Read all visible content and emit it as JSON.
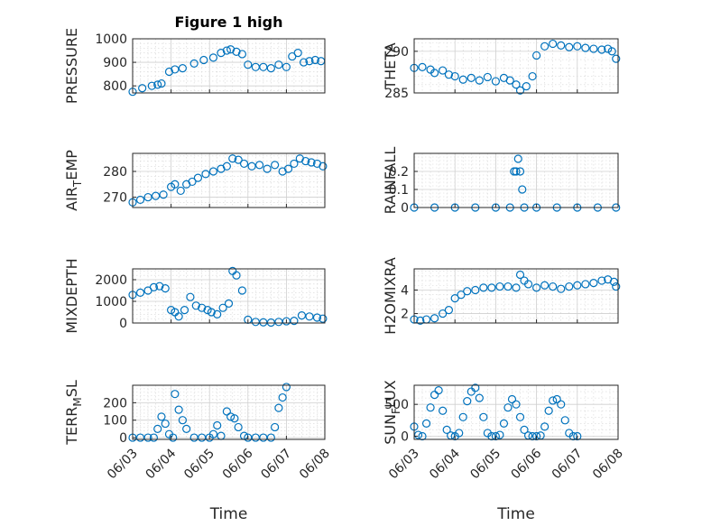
{
  "figure": {
    "title": "Figure 1 high",
    "x_label": "Time",
    "x_tick_labels": [
      "06/03",
      "06/04",
      "06/05",
      "06/06",
      "06/07",
      "06/08"
    ],
    "marker_color": "#0072BD",
    "marker": "circle-open"
  },
  "chart_data": [
    {
      "type": "scatter",
      "title": "Figure 1 high",
      "xlabel": "",
      "ylabel": "PRESSURE",
      "ylabel_sub": {
        "main": "PRESSURE",
        "sub": "",
        "tail": ""
      },
      "xlim": [
        0,
        5
      ],
      "ylim": [
        770,
        1000
      ],
      "yticks": [
        800,
        900,
        1000
      ],
      "grid": true,
      "minor_grid": true,
      "series": [
        {
          "x_days_from_06_03": [
            0.0,
            0.25,
            0.5,
            0.65,
            0.75,
            0.95,
            1.1,
            1.3,
            1.6,
            1.85,
            2.1,
            2.3,
            2.45,
            2.55,
            2.7,
            2.85,
            3.0,
            3.2,
            3.4,
            3.6,
            3.8,
            4.0,
            4.15,
            4.3,
            4.45,
            4.6,
            4.75,
            4.9
          ],
          "y": [
            775,
            790,
            800,
            805,
            810,
            860,
            870,
            875,
            895,
            910,
            920,
            940,
            950,
            955,
            945,
            935,
            890,
            880,
            880,
            875,
            890,
            880,
            925,
            940,
            900,
            905,
            910,
            905
          ]
        }
      ]
    },
    {
      "type": "scatter",
      "title": "",
      "xlabel": "",
      "ylabel": "THETA",
      "ylabel_sub": {
        "main": "THETA",
        "sub": "",
        "tail": ""
      },
      "xlim": [
        0,
        5
      ],
      "ylim": [
        285,
        291.5
      ],
      "yticks": [
        285,
        290
      ],
      "grid": true,
      "minor_grid": true,
      "series": [
        {
          "x_days_from_06_03": [
            0.0,
            0.2,
            0.4,
            0.5,
            0.7,
            0.85,
            1.0,
            1.2,
            1.4,
            1.6,
            1.8,
            2.0,
            2.2,
            2.35,
            2.5,
            2.6,
            2.75,
            2.9,
            3.0,
            3.2,
            3.4,
            3.6,
            3.8,
            4.0,
            4.2,
            4.4,
            4.6,
            4.75,
            4.85,
            4.95
          ],
          "y": [
            288,
            288.1,
            287.8,
            287.4,
            287.7,
            287.2,
            287.0,
            286.6,
            286.8,
            286.5,
            286.9,
            286.4,
            286.8,
            286.5,
            286.0,
            285.3,
            285.8,
            287.0,
            289.5,
            290.6,
            290.9,
            290.7,
            290.5,
            290.6,
            290.4,
            290.3,
            290.2,
            290.3,
            290.0,
            289.1
          ]
        }
      ]
    },
    {
      "type": "scatter",
      "title": "",
      "xlabel": "",
      "ylabel": "AIR_TEMP",
      "ylabel_sub": {
        "main": "AIR",
        "sub": "T",
        "tail": "EMP"
      },
      "xlim": [
        0,
        5
      ],
      "ylim": [
        266,
        287
      ],
      "yticks": [
        270,
        280
      ],
      "grid": true,
      "minor_grid": true,
      "series": [
        {
          "x_days_from_06_03": [
            0.0,
            0.2,
            0.4,
            0.6,
            0.8,
            1.0,
            1.1,
            1.25,
            1.4,
            1.55,
            1.7,
            1.9,
            2.1,
            2.3,
            2.45,
            2.6,
            2.75,
            2.9,
            3.1,
            3.3,
            3.5,
            3.7,
            3.9,
            4.05,
            4.2,
            4.35,
            4.5,
            4.65,
            4.8,
            4.95
          ],
          "y": [
            268,
            269,
            270,
            270.5,
            271,
            274,
            275,
            272.5,
            275,
            276,
            277.5,
            279,
            280,
            281,
            282,
            285,
            284.5,
            283,
            282,
            282.5,
            281,
            282.5,
            280,
            281,
            283,
            285,
            284,
            283.5,
            283,
            282
          ]
        }
      ]
    },
    {
      "type": "scatter",
      "title": "",
      "xlabel": "",
      "ylabel": "RAINFALL",
      "ylabel_sub": {
        "main": "RAINFALL",
        "sub": "",
        "tail": ""
      },
      "xlim": [
        0,
        5
      ],
      "ylim": [
        0,
        0.3
      ],
      "yticks": [
        0,
        0.1,
        0.2
      ],
      "grid": true,
      "minor_grid": true,
      "series": [
        {
          "x_days_from_06_03": [
            0.0,
            0.5,
            1.0,
            1.5,
            2.0,
            2.35,
            2.45,
            2.5,
            2.55,
            2.6,
            2.65,
            2.7,
            3.0,
            3.5,
            4.0,
            4.5,
            4.95
          ],
          "y": [
            0,
            0,
            0,
            0,
            0,
            0,
            0.2,
            0.2,
            0.27,
            0.2,
            0.1,
            0,
            0,
            0,
            0,
            0,
            0
          ]
        }
      ]
    },
    {
      "type": "scatter",
      "title": "",
      "xlabel": "",
      "ylabel": "MIXDEPTH",
      "ylabel_sub": {
        "main": "MIXDEPTH",
        "sub": "",
        "tail": ""
      },
      "xlim": [
        0,
        5
      ],
      "ylim": [
        0,
        2500
      ],
      "yticks": [
        0,
        1000,
        2000
      ],
      "grid": true,
      "minor_grid": true,
      "series": [
        {
          "x_days_from_06_03": [
            0.0,
            0.2,
            0.4,
            0.55,
            0.7,
            0.85,
            1.0,
            1.1,
            1.2,
            1.35,
            1.5,
            1.65,
            1.8,
            1.95,
            2.05,
            2.2,
            2.35,
            2.5,
            2.6,
            2.7,
            2.85,
            3.0,
            3.2,
            3.4,
            3.6,
            3.8,
            4.0,
            4.2,
            4.4,
            4.6,
            4.8,
            4.95
          ],
          "y": [
            1300,
            1400,
            1500,
            1650,
            1700,
            1600,
            600,
            500,
            300,
            600,
            1200,
            800,
            700,
            600,
            500,
            400,
            700,
            900,
            2400,
            2200,
            1500,
            150,
            50,
            30,
            20,
            50,
            80,
            100,
            350,
            300,
            250,
            200
          ]
        }
      ]
    },
    {
      "type": "scatter",
      "title": "",
      "xlabel": "",
      "ylabel": "H2OMIXRA",
      "ylabel_sub": {
        "main": "H2OMIXRA",
        "sub": "",
        "tail": ""
      },
      "xlim": [
        0,
        5
      ],
      "ylim": [
        1.2,
        5.8
      ],
      "yticks": [
        2,
        4
      ],
      "grid": true,
      "minor_grid": true,
      "series": [
        {
          "x_days_from_06_03": [
            0.0,
            0.15,
            0.3,
            0.5,
            0.7,
            0.85,
            1.0,
            1.15,
            1.3,
            1.5,
            1.7,
            1.9,
            2.1,
            2.3,
            2.5,
            2.6,
            2.7,
            2.8,
            3.0,
            3.2,
            3.4,
            3.6,
            3.8,
            4.0,
            4.2,
            4.4,
            4.6,
            4.75,
            4.9,
            4.95
          ],
          "y": [
            1.5,
            1.4,
            1.5,
            1.6,
            2.0,
            2.3,
            3.3,
            3.6,
            3.9,
            4.0,
            4.2,
            4.2,
            4.3,
            4.3,
            4.2,
            5.3,
            4.8,
            4.5,
            4.2,
            4.4,
            4.3,
            4.1,
            4.3,
            4.4,
            4.5,
            4.6,
            4.8,
            4.9,
            4.7,
            4.3
          ]
        }
      ]
    },
    {
      "type": "scatter",
      "title": "",
      "xlabel": "Time",
      "ylabel": "TERR_MSL",
      "ylabel_sub": {
        "main": "TERR",
        "sub": "M",
        "tail": "SL"
      },
      "xlim": [
        0,
        5
      ],
      "ylim": [
        -10,
        300
      ],
      "yticks": [
        0,
        100,
        200
      ],
      "grid": true,
      "minor_grid": true,
      "xticks_days": [
        0,
        1,
        2,
        3,
        4,
        5
      ],
      "xtick_labels": [
        "06/03",
        "06/04",
        "06/05",
        "06/06",
        "06/07",
        "06/08"
      ],
      "series": [
        {
          "x_days_from_06_03": [
            0.0,
            0.2,
            0.4,
            0.55,
            0.65,
            0.75,
            0.85,
            0.95,
            1.05,
            1.1,
            1.2,
            1.3,
            1.4,
            1.6,
            1.8,
            2.0,
            2.1,
            2.2,
            2.3,
            2.45,
            2.55,
            2.65,
            2.75,
            2.9,
            3.0,
            3.2,
            3.4,
            3.6,
            3.7,
            3.8,
            3.9,
            4.0
          ],
          "y": [
            0,
            0,
            0,
            0,
            50,
            120,
            80,
            20,
            0,
            250,
            160,
            100,
            50,
            0,
            0,
            0,
            20,
            70,
            10,
            150,
            120,
            110,
            60,
            10,
            0,
            0,
            0,
            0,
            60,
            170,
            230,
            290
          ]
        }
      ]
    },
    {
      "type": "scatter",
      "title": "",
      "xlabel": "Time",
      "ylabel": "SUN_FLUX",
      "ylabel_sub": {
        "main": "SUN",
        "sub": "F",
        "tail": "LUX"
      },
      "xlim": [
        0,
        5
      ],
      "ylim": [
        -50,
        800
      ],
      "yticks": [
        0,
        500
      ],
      "grid": true,
      "minor_grid": true,
      "xticks_days": [
        0,
        1,
        2,
        3,
        4,
        5
      ],
      "xtick_labels": [
        "06/03",
        "06/04",
        "06/05",
        "06/06",
        "06/07",
        "06/08"
      ],
      "series": [
        {
          "x_days_from_06_03": [
            0.0,
            0.1,
            0.2,
            0.3,
            0.4,
            0.5,
            0.6,
            0.7,
            0.8,
            0.9,
            1.0,
            1.1,
            1.2,
            1.3,
            1.4,
            1.5,
            1.6,
            1.7,
            1.8,
            1.9,
            2.0,
            2.1,
            2.2,
            2.3,
            2.4,
            2.5,
            2.6,
            2.7,
            2.8,
            2.9,
            3.0,
            3.1,
            3.2,
            3.3,
            3.4,
            3.5,
            3.6,
            3.7,
            3.8,
            3.9,
            4.0
          ],
          "y": [
            150,
            20,
            0,
            200,
            450,
            650,
            720,
            400,
            100,
            10,
            0,
            50,
            300,
            550,
            700,
            760,
            600,
            300,
            50,
            0,
            0,
            20,
            200,
            450,
            580,
            500,
            300,
            100,
            10,
            0,
            0,
            10,
            150,
            400,
            560,
            580,
            500,
            250,
            50,
            0,
            0
          ]
        }
      ]
    }
  ]
}
